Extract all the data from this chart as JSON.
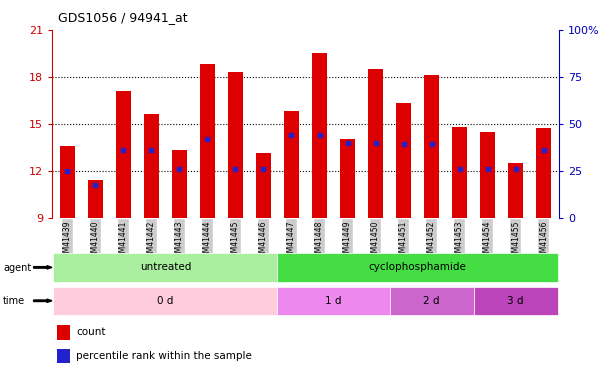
{
  "title": "GDS1056 / 94941_at",
  "samples": [
    "GSM41439",
    "GSM41440",
    "GSM41441",
    "GSM41442",
    "GSM41443",
    "GSM41444",
    "GSM41445",
    "GSM41446",
    "GSM41447",
    "GSM41448",
    "GSM41449",
    "GSM41450",
    "GSM41451",
    "GSM41452",
    "GSM41453",
    "GSM41454",
    "GSM41455",
    "GSM41456"
  ],
  "bar_tops": [
    13.6,
    11.4,
    17.1,
    15.6,
    13.3,
    18.8,
    18.3,
    13.1,
    15.8,
    19.5,
    14.0,
    18.5,
    16.3,
    18.1,
    14.8,
    14.5,
    12.5,
    14.7
  ],
  "blue_heights": [
    12.0,
    11.1,
    13.3,
    13.3,
    12.1,
    14.0,
    12.1,
    12.1,
    14.3,
    14.3,
    13.8,
    13.8,
    13.7,
    13.7,
    12.1,
    12.1,
    12.1,
    13.3
  ],
  "bar_bottom": 9,
  "ymin": 9,
  "ymax": 21,
  "yticks_left": [
    9,
    12,
    15,
    18,
    21
  ],
  "right_tick_vals": [
    9,
    12,
    15,
    18,
    21
  ],
  "right_tick_labels": [
    "0",
    "25",
    "50",
    "75",
    "100%"
  ],
  "bar_color": "#dd0000",
  "blue_color": "#2222cc",
  "agent_groups": [
    {
      "label": "untreated",
      "start": 0,
      "end": 8,
      "color": "#aaeea0"
    },
    {
      "label": "cyclophosphamide",
      "start": 8,
      "end": 18,
      "color": "#44dd44"
    }
  ],
  "time_groups": [
    {
      "label": "0 d",
      "start": 0,
      "end": 8,
      "color": "#ffccdd"
    },
    {
      "label": "1 d",
      "start": 8,
      "end": 12,
      "color": "#ee88ee"
    },
    {
      "label": "2 d",
      "start": 12,
      "end": 15,
      "color": "#cc66cc"
    },
    {
      "label": "3 d",
      "start": 15,
      "end": 18,
      "color": "#bb44bb"
    }
  ],
  "legend_items": [
    {
      "label": "count",
      "color": "#dd0000"
    },
    {
      "label": "percentile rank within the sample",
      "color": "#2222cc"
    }
  ],
  "left_axis_color": "#cc0000",
  "right_axis_color": "#0000bb",
  "bar_width": 0.55,
  "xtick_bg_color": "#cccccc"
}
